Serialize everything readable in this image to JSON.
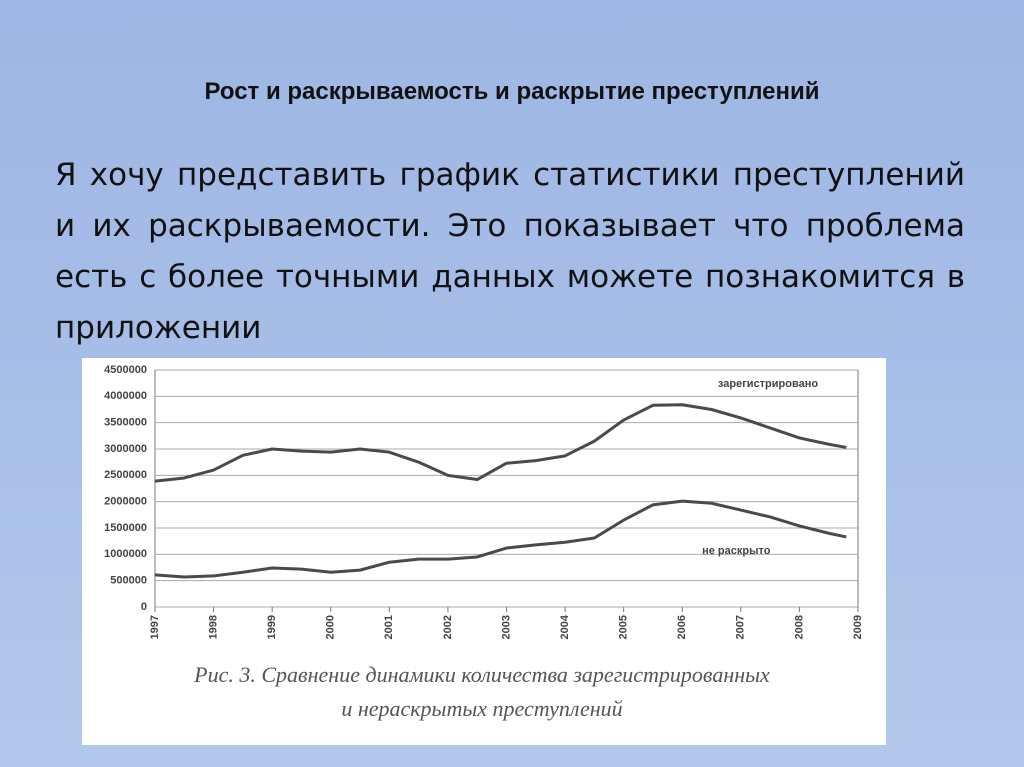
{
  "slide": {
    "title": "Рост и раскрываемость и раскрытие преступлений",
    "body": "Я хочу представить график статистики преступлений и их раскрываемости. Это показывает что проблема есть с более точными данных можете познакомится в приложении"
  },
  "chart_data": {
    "type": "line",
    "caption": [
      "Рис. 3. Сравнение динамики количества зарегистрированных",
      "и нераскрытых преступлений"
    ],
    "x": [
      1997,
      1997.5,
      1998,
      1998.5,
      1999,
      1999.5,
      2000,
      2000.5,
      2001,
      2001.5,
      2002,
      2002.5,
      2003,
      2003.5,
      2004,
      2004.5,
      2005,
      2005.5,
      2006,
      2006.5,
      2007,
      2007.5,
      2008,
      2008.5,
      2008.8
    ],
    "series": [
      {
        "name": "зарегистрировано",
        "color": "#4a4a4a",
        "values": [
          2390000,
          2450000,
          2600000,
          2880000,
          3000000,
          2960000,
          2940000,
          3000000,
          2940000,
          2750000,
          2500000,
          2420000,
          2730000,
          2780000,
          2870000,
          3150000,
          3550000,
          3830000,
          3840000,
          3750000,
          3590000,
          3400000,
          3210000,
          3090000,
          3030000
        ]
      },
      {
        "name": "не раскрыто",
        "color": "#4a4a4a",
        "values": [
          610000,
          570000,
          590000,
          660000,
          740000,
          720000,
          660000,
          700000,
          850000,
          910000,
          910000,
          950000,
          1120000,
          1180000,
          1230000,
          1310000,
          1650000,
          1940000,
          2010000,
          1970000,
          1840000,
          1710000,
          1540000,
          1400000,
          1330000
        ]
      }
    ],
    "xlim": [
      1997,
      2009
    ],
    "xticks": [
      1997,
      1998,
      1999,
      2000,
      2001,
      2002,
      2003,
      2004,
      2005,
      2006,
      2007,
      2008,
      2009
    ],
    "ylim": [
      0,
      4500000
    ],
    "yticks": [
      0,
      500000,
      1000000,
      1500000,
      2000000,
      2500000,
      3000000,
      3500000,
      4000000,
      4500000
    ],
    "grid": true
  }
}
